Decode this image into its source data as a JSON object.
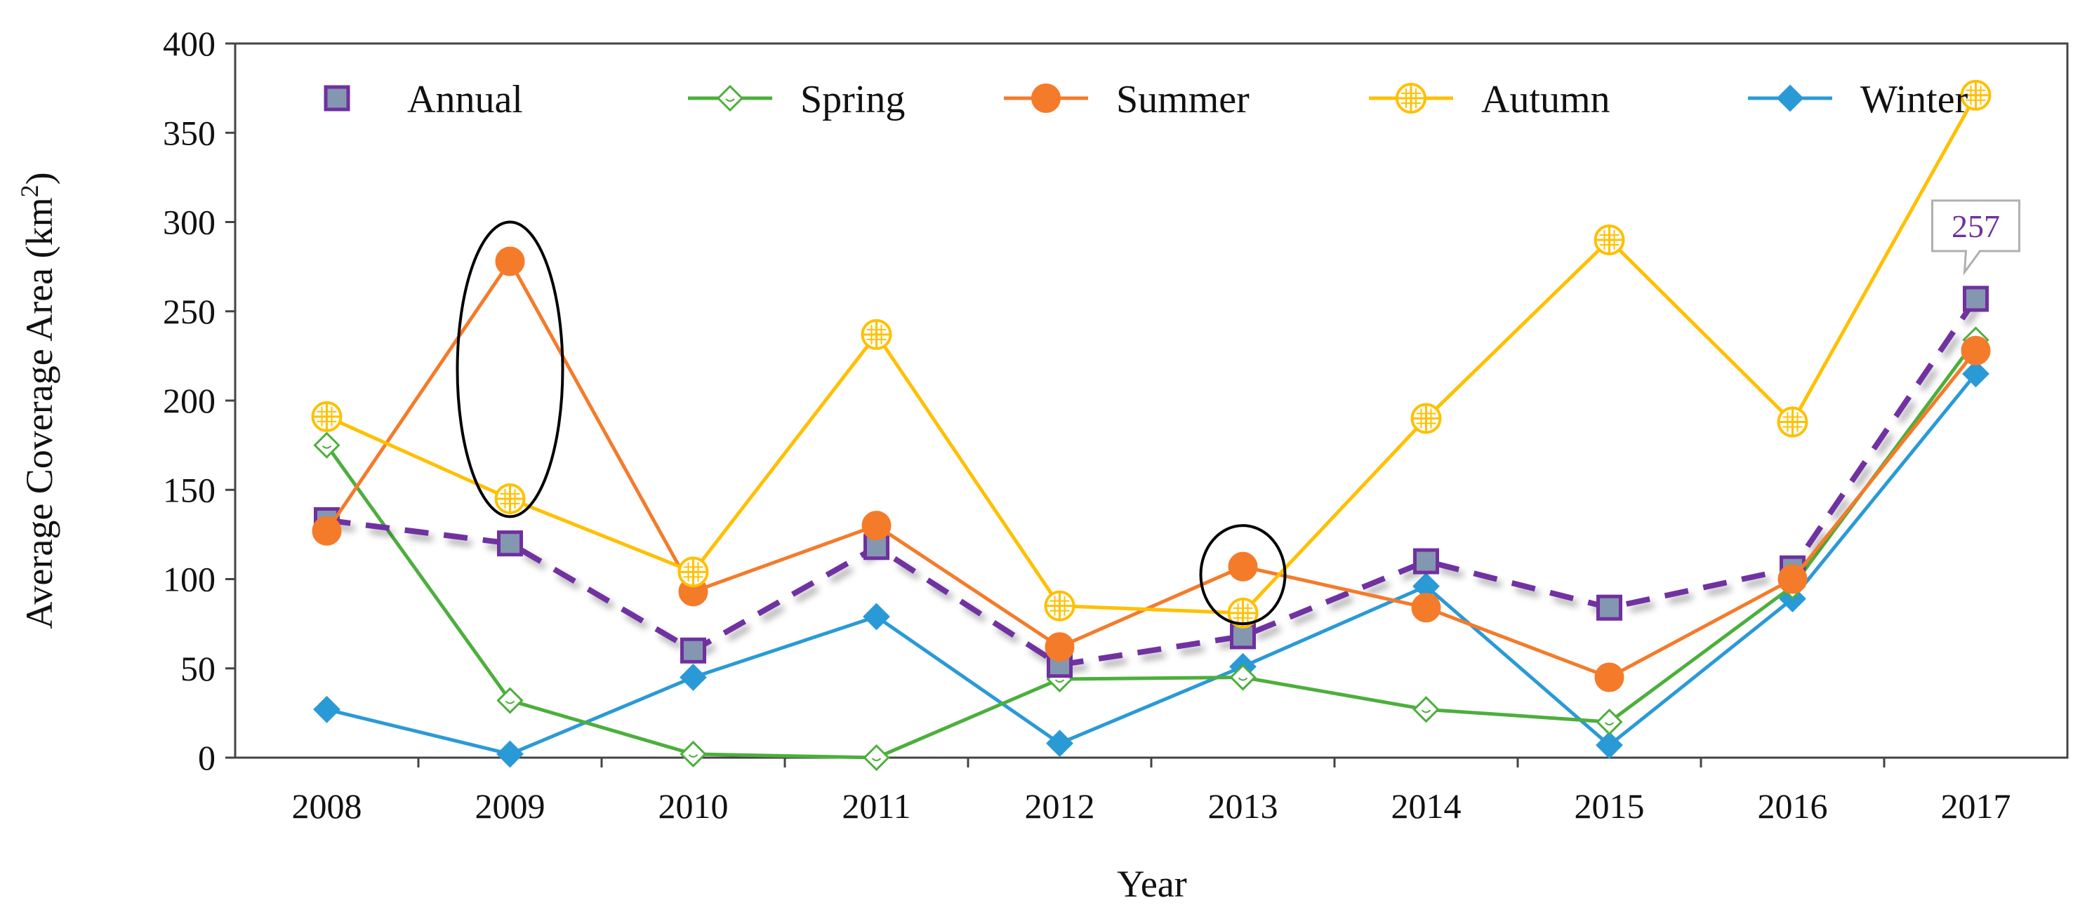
{
  "chart_data": {
    "type": "line",
    "title": "",
    "xlabel": "Year",
    "ylabel": "Average Coverage Area (km²)",
    "ylabel_parts": {
      "base": "Average Coverage Area (km",
      "sup": "2",
      "close": ")"
    },
    "categories": [
      "2008",
      "2009",
      "2010",
      "2011",
      "2012",
      "2013",
      "2014",
      "2015",
      "2016",
      "2017"
    ],
    "ylim": [
      0,
      400
    ],
    "yticks": [
      "0",
      "50",
      "100",
      "150",
      "200",
      "250",
      "300",
      "350",
      "400"
    ],
    "grid": false,
    "legend_position": "top",
    "series": [
      {
        "name": "Annual",
        "color": "#7030a0",
        "marker": "square",
        "dashed": true,
        "values": [
          133,
          120,
          60,
          118,
          52,
          68,
          110,
          84,
          106,
          257
        ]
      },
      {
        "name": "Spring",
        "color": "#4caf3c",
        "marker": "diamond-open",
        "dashed": false,
        "values": [
          175,
          32,
          2,
          0,
          44,
          45,
          27,
          20,
          96,
          234
        ]
      },
      {
        "name": "Summer",
        "color": "#f47b2a",
        "marker": "circle",
        "dashed": false,
        "values": [
          127,
          278,
          93,
          130,
          62,
          107,
          84,
          45,
          100,
          228
        ]
      },
      {
        "name": "Autumn",
        "color": "#ffc000",
        "marker": "circle-cross-open",
        "dashed": false,
        "values": [
          191,
          145,
          104,
          237,
          85,
          81,
          190,
          290,
          188,
          371
        ]
      },
      {
        "name": "Winter",
        "color": "#2a9ad6",
        "marker": "diamond",
        "dashed": false,
        "values": [
          27,
          2,
          45,
          79,
          8,
          51,
          96,
          7,
          89,
          215
        ]
      }
    ],
    "annotations": [
      {
        "type": "data-label",
        "series": "Annual",
        "category": "2017",
        "text": "257"
      },
      {
        "type": "ellipse",
        "category": "2009",
        "y_range": [
          135,
          300
        ]
      },
      {
        "type": "ellipse",
        "category": "2013",
        "y_range": [
          75,
          130
        ]
      }
    ]
  }
}
